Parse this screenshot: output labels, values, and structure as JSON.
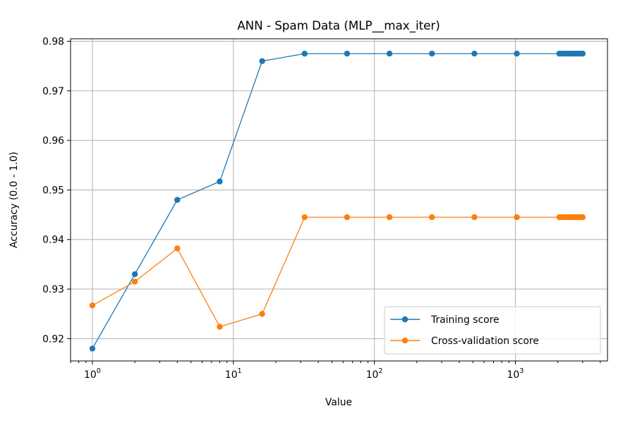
{
  "chart_data": {
    "type": "line",
    "title": "ANN - Spam Data (MLP__max_iter)",
    "xlabel": "Value",
    "ylabel": "Accuracy (0.0 - 1.0)",
    "xscale": "log",
    "xlim": [
      0.7,
      4500
    ],
    "ylim": [
      0.9155,
      0.9805
    ],
    "grid": true,
    "legend_position": "lower-right",
    "x_ticks": [
      {
        "value": 1,
        "base": "10",
        "exp": "0"
      },
      {
        "value": 10,
        "base": "10",
        "exp": "1"
      },
      {
        "value": 100,
        "base": "10",
        "exp": "2"
      },
      {
        "value": 1000,
        "base": "10",
        "exp": "3"
      }
    ],
    "y_ticks": [
      0.92,
      0.93,
      0.94,
      0.95,
      0.96,
      0.97,
      0.98
    ],
    "y_tick_labels": [
      "0.92",
      "0.93",
      "0.94",
      "0.95",
      "0.96",
      "0.97",
      "0.98"
    ],
    "x": [
      1,
      2,
      4,
      8,
      16,
      32,
      64,
      128,
      256,
      512,
      1024,
      2048,
      2100,
      2200,
      2300,
      2400,
      2500,
      2600,
      2700,
      2800,
      2900,
      3000
    ],
    "series": [
      {
        "name": "Training score",
        "color": "#1f77b4",
        "values": [
          0.918,
          0.933,
          0.948,
          0.9517,
          0.976,
          0.9775,
          0.9775,
          0.9775,
          0.9775,
          0.9775,
          0.9775,
          0.9775,
          0.9775,
          0.9775,
          0.9775,
          0.9775,
          0.9775,
          0.9775,
          0.9775,
          0.9775,
          0.9775,
          0.9775
        ]
      },
      {
        "name": "Cross-validation score",
        "color": "#ff7f0e",
        "values": [
          0.9267,
          0.9315,
          0.9382,
          0.9224,
          0.925,
          0.9445,
          0.9445,
          0.9445,
          0.9445,
          0.9445,
          0.9445,
          0.9445,
          0.9445,
          0.9445,
          0.9445,
          0.9445,
          0.9445,
          0.9445,
          0.9445,
          0.9445,
          0.9445,
          0.9445
        ]
      }
    ]
  }
}
